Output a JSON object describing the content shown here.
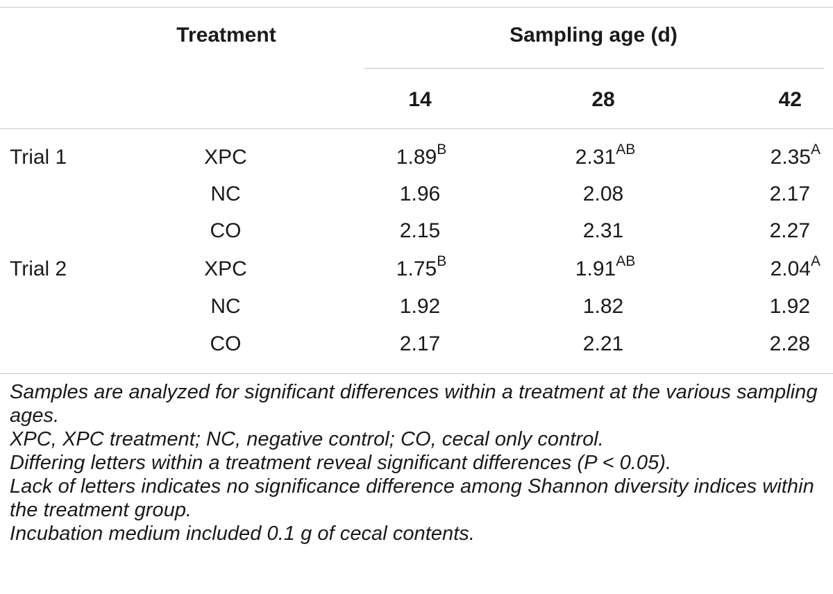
{
  "header": {
    "treatment": "Treatment",
    "sampling_age": "Sampling age (d)",
    "ages": [
      "14",
      "28",
      "42"
    ]
  },
  "rows": [
    {
      "trial": "Trial 1",
      "treatment": "XPC",
      "v14": "1.89",
      "s14": "B",
      "v28": "2.31",
      "s28": "AB",
      "v42": "2.35",
      "s42": "A"
    },
    {
      "trial": "",
      "treatment": "NC",
      "v14": "1.96",
      "s14": "",
      "v28": "2.08",
      "s28": "",
      "v42": "2.17",
      "s42": ""
    },
    {
      "trial": "",
      "treatment": "CO",
      "v14": "2.15",
      "s14": "",
      "v28": "2.31",
      "s28": "",
      "v42": "2.27",
      "s42": ""
    },
    {
      "trial": "Trial 2",
      "treatment": "XPC",
      "v14": "1.75",
      "s14": "B",
      "v28": "1.91",
      "s28": "AB",
      "v42": "2.04",
      "s42": "A"
    },
    {
      "trial": "",
      "treatment": "NC",
      "v14": "1.92",
      "s14": "",
      "v28": "1.82",
      "s28": "",
      "v42": "1.92",
      "s42": ""
    },
    {
      "trial": "",
      "treatment": "CO",
      "v14": "2.17",
      "s14": "",
      "v28": "2.21",
      "s28": "",
      "v42": "2.28",
      "s42": ""
    }
  ],
  "notes": {
    "note1": "Samples are analyzed for significant differences within a treatment at the various sampling ages.",
    "note2": "XPC, XPC treatment; NC, negative control; CO, cecal only control.",
    "note3": "Differing letters within a treatment reveal significant differences (P < 0.05).",
    "note4": "Lack of letters indicates no significance difference among Shannon diversity indices within the treatment group.",
    "note5": "Incubation medium included 0.1 g of cecal contents."
  }
}
